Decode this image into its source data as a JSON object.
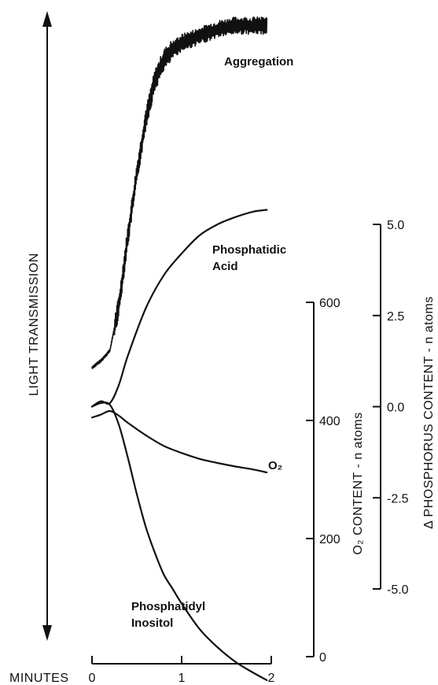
{
  "chart_data": {
    "type": "line",
    "x_axis": {
      "label": "MINUTES",
      "ticks": [
        0,
        1,
        2
      ],
      "range": [
        0,
        2
      ]
    },
    "left_axis": {
      "label": "LIGHT TRANSMISSION"
    },
    "o2_axis": {
      "label": "O₂ CONTENT - n atoms",
      "ticks": [
        0,
        200,
        400,
        600
      ],
      "range": [
        0,
        600
      ]
    },
    "phosphorus_axis": {
      "label": "Δ PHOSPHORUS CONTENT - n atoms",
      "ticks": [
        "5.0",
        "2.5",
        "0.0",
        "-2.5",
        "-5.0"
      ],
      "tick_values": [
        5.0,
        2.5,
        0.0,
        -2.5,
        -5.0
      ],
      "range": [
        -5.0,
        5.0
      ]
    },
    "series": [
      {
        "name": "Aggregation",
        "axis": "left",
        "x": [
          0,
          0.1,
          0.2,
          0.3,
          0.4,
          0.5,
          0.6,
          0.7,
          0.8,
          0.9,
          1.0,
          1.2,
          1.4,
          1.6,
          1.8,
          1.95
        ],
        "y": [
          0.0,
          0.02,
          0.05,
          0.18,
          0.38,
          0.56,
          0.72,
          0.83,
          0.89,
          0.92,
          0.94,
          0.96,
          0.98,
          0.99,
          0.99,
          0.99
        ]
      },
      {
        "name": "Phosphatidic Acid",
        "axis": "phosphorus",
        "x": [
          0,
          0.1,
          0.2,
          0.3,
          0.4,
          0.6,
          0.8,
          1.0,
          1.2,
          1.4,
          1.6,
          1.8,
          1.95
        ],
        "y": [
          0.0,
          0.15,
          0.1,
          0.6,
          1.4,
          2.7,
          3.6,
          4.2,
          4.7,
          5.0,
          5.2,
          5.35,
          5.4
        ]
      },
      {
        "name": "O₂",
        "axis": "o2",
        "x": [
          0,
          0.1,
          0.2,
          0.3,
          0.4,
          0.6,
          0.8,
          1.0,
          1.2,
          1.4,
          1.6,
          1.8,
          1.95
        ],
        "y": [
          405,
          410,
          416,
          408,
          396,
          375,
          357,
          345,
          335,
          328,
          322,
          317,
          312
        ]
      },
      {
        "name": "Phosphatidyl Inositol",
        "axis": "phosphorus",
        "x": [
          0,
          0.1,
          0.2,
          0.3,
          0.4,
          0.5,
          0.6,
          0.7,
          0.8,
          0.9,
          1.0,
          1.2,
          1.4,
          1.6,
          1.8,
          1.95
        ],
        "y": [
          0.0,
          0.1,
          0.05,
          -0.5,
          -1.4,
          -2.4,
          -3.3,
          -4.0,
          -4.6,
          -5.0,
          -5.4,
          -6.1,
          -6.6,
          -7.0,
          -7.3,
          -7.5
        ]
      }
    ],
    "annotations": [
      "Aggregation",
      "Phosphatidic",
      "Acid",
      "O₂",
      "Phosphatidyl",
      "Inositol"
    ],
    "grid": false,
    "legend": "none"
  }
}
